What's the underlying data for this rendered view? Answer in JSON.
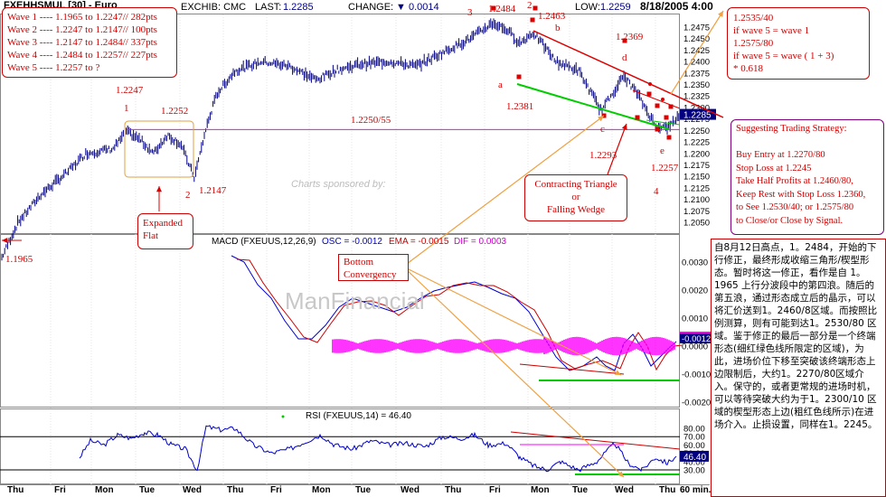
{
  "header": {
    "symbol": "FXEHHSMUL [30] - Euro",
    "exchange": "EXCHIB: CMC",
    "last_label": "LAST:",
    "last": "1.2285",
    "change_label": "CHANGE:",
    "change": "0.0014",
    "low_label": "LOW:",
    "low": "1.2259",
    "datetime": "8/18/2005 4:00"
  },
  "wave_box": [
    "Wave 1 ---- 1.1965 to 1.2247// 282pts",
    "Wave 2 ---- 1.2247 to 1.2147// 100pts",
    "Wave 3 ---- 1.2147 to 1.2484// 337pts",
    "Wave 4 ---- 1.2484 to 1.2257// 227pts",
    "Wave 5 ---- 1.2257 to ?"
  ],
  "target_box": [
    "1.2535/40",
    "if wave 5 = wave 1",
    "1.2575/80",
    "if wave 5 = wave ( 1 + 3)",
    "* 0.618"
  ],
  "strategy_box": [
    "Suggesting Trading Strategy:",
    "",
    "Buy Entry at 1.2270/80",
    "Stop Loss  at 1.2245",
    "Take Half  Profits at 1.2460/80,",
    "Keep Rest with Stop Loss 1.2360,",
    "  to See 1.2530/40; or 1.2575/80",
    "to Close/or Close by Signal."
  ],
  "chinese_note": "自8月12日高点，1。2484，开始的下行修正，最终形成收缩三角形/楔型形态。暂时将这一修正，看作是自 1。1965 上行分波段中的第四浪。随后的第五浪，通过形态成立后的晶示，可以将汇价送到1。2460/8区域。而按照比例测算，则有可能到达1。2530/80 区域。鉴于修正的最后一部分是一个终端形态(细红绿色线所限定的区域)，为此，进场价位下移至突破该终端形态上边限制后，大约1。2270/80区域介入。保守的，或者更常规的进场时机，可以等待突破大约为于1。2300/10 区域的楔型形态上边(粗红色线所示)在进场介入。止损设置，同样在1。2245。",
  "labels": {
    "expanded_flat": [
      "Expanded",
      "Flat"
    ],
    "bottom_convergency": [
      "Bottom",
      "Convergency"
    ],
    "triangle": [
      "Contracting Triangle",
      "or",
      "Falling  Wedge"
    ],
    "level_1965": "1.1965",
    "w1": "1",
    "w1_price": "1.2247",
    "w2_price_a": "1.2252",
    "w2": "2",
    "w2_price": "1.2147",
    "w3": "3",
    "w3_price": "1.2484",
    "w4": "4",
    "w4_price": "1.2257",
    "hline_label": "1.2250/55",
    "a": "a",
    "a_price": "1.2381",
    "b": "b",
    "b_price": "1.2463",
    "c": "c",
    "c_price": "1.2293",
    "d": "d",
    "d_price": "1.2369",
    "e": "e",
    "top_2": "2"
  },
  "watermark": {
    "line1": "Charts sponsored by:",
    "line2": "ManFinancial"
  },
  "macd_header": {
    "title": "MACD (FXEUUS,12,26,9)",
    "osc": "OSC = -0.0012",
    "ema": "EMA = -0.0015",
    "dif": "DIF = 0.0003"
  },
  "rsi_header": {
    "title": "RSI (FXEUUS,14) = 46.40"
  },
  "day_labels": [
    "Thu",
    "Fri",
    "Mon",
    "Tue",
    "Wed",
    "Thu",
    "Fri",
    "Mon",
    "Tue",
    "Wed",
    "Thu",
    "Fri",
    "Mon",
    "Tue",
    "Wed",
    "Thu"
  ],
  "time_unit": "60 min.",
  "colors": {
    "price": "#000080",
    "annotation": "#cc0000",
    "magenta": "#ff00ff",
    "green": "#00cc00",
    "orange": "#f0a040",
    "purple": "#800080"
  },
  "chart_data": [
    {
      "type": "line",
      "name": "price",
      "ylim": [
        1.2,
        1.25
      ],
      "y_ticks": [
        "1.2475",
        "1.2450",
        "1.2425",
        "1.2400",
        "1.2375",
        "1.2350",
        "1.2325",
        "1.2300",
        "1.2275",
        "1.2250",
        "1.2225",
        "1.2200",
        "1.2175",
        "1.2150",
        "1.2125",
        "1.2100",
        "1.2075",
        "1.2050"
      ],
      "last_value": "1.2285",
      "keypoints": [
        [
          0,
          1.1965
        ],
        [
          20,
          1.205
        ],
        [
          45,
          1.211
        ],
        [
          75,
          1.216
        ],
        [
          95,
          1.22
        ],
        [
          125,
          1.221
        ],
        [
          140,
          1.2247
        ],
        [
          155,
          1.223
        ],
        [
          170,
          1.22
        ],
        [
          185,
          1.224
        ],
        [
          200,
          1.222
        ],
        [
          215,
          1.2147
        ],
        [
          228,
          1.2255
        ],
        [
          240,
          1.233
        ],
        [
          260,
          1.238
        ],
        [
          290,
          1.24
        ],
        [
          320,
          1.239
        ],
        [
          350,
          1.236
        ],
        [
          370,
          1.238
        ],
        [
          400,
          1.2395
        ],
        [
          430,
          1.24
        ],
        [
          460,
          1.239
        ],
        [
          490,
          1.242
        ],
        [
          520,
          1.245
        ],
        [
          545,
          1.2484
        ],
        [
          560,
          1.247
        ],
        [
          575,
          1.244
        ],
        [
          590,
          1.2463
        ],
        [
          615,
          1.24
        ],
        [
          640,
          1.238
        ],
        [
          665,
          1.2293
        ],
        [
          690,
          1.2369
        ],
        [
          705,
          1.233
        ],
        [
          725,
          1.226
        ],
        [
          740,
          1.2257
        ],
        [
          752,
          1.2285
        ]
      ],
      "hline": 1.2252
    },
    {
      "type": "line",
      "name": "MACD",
      "ylim": [
        -0.003,
        0.0035
      ],
      "y_ticks": [
        "0.0030",
        "0.0020",
        "0.0010",
        "0.0000",
        "-0.0010",
        "-0.0020"
      ],
      "osc": -0.0012,
      "ema": -0.0015,
      "dif": 0.0003
    },
    {
      "type": "line",
      "name": "RSI",
      "ylim": [
        25,
        85
      ],
      "y_ticks": [
        "80.00",
        "70.00",
        "60.00",
        "50.00",
        "40.00",
        "30.00"
      ],
      "last_value": "46.40",
      "keypoints": [
        [
          88,
          45
        ],
        [
          100,
          65
        ],
        [
          115,
          60
        ],
        [
          130,
          72
        ],
        [
          145,
          68
        ],
        [
          160,
          75
        ],
        [
          175,
          72
        ],
        [
          190,
          60
        ],
        [
          205,
          55
        ],
        [
          218,
          30
        ],
        [
          228,
          82
        ],
        [
          245,
          78
        ],
        [
          260,
          80
        ],
        [
          280,
          60
        ],
        [
          300,
          50
        ],
        [
          320,
          55
        ],
        [
          340,
          65
        ],
        [
          355,
          72
        ],
        [
          370,
          60
        ],
        [
          390,
          55
        ],
        [
          410,
          65
        ],
        [
          430,
          60
        ],
        [
          450,
          62
        ],
        [
          470,
          58
        ],
        [
          490,
          70
        ],
        [
          510,
          68
        ],
        [
          525,
          72
        ],
        [
          540,
          60
        ],
        [
          560,
          62
        ],
        [
          575,
          45
        ],
        [
          590,
          35
        ],
        [
          605,
          30
        ],
        [
          620,
          40
        ],
        [
          640,
          30
        ],
        [
          660,
          40
        ],
        [
          680,
          62
        ],
        [
          695,
          38
        ],
        [
          710,
          30
        ],
        [
          725,
          45
        ],
        [
          738,
          38
        ],
        [
          748,
          46.4
        ]
      ]
    }
  ]
}
